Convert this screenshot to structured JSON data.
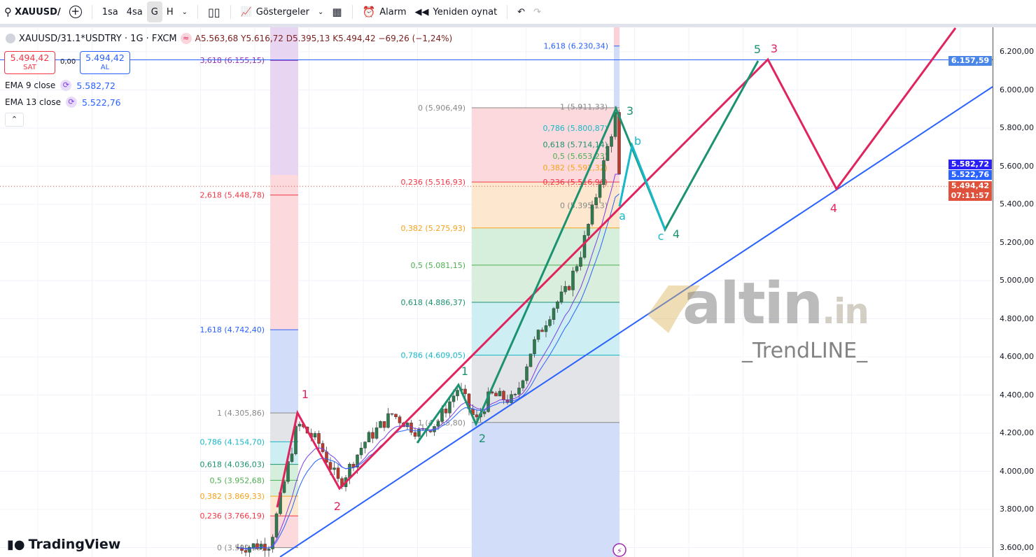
{
  "toolbar": {
    "symbol": "XAUUSD/",
    "intervals": [
      "1sa",
      "4sa",
      "G",
      "H"
    ],
    "active_interval": "G",
    "indicators": "Göstergeler",
    "alarm": "Alarm",
    "replay": "Yeniden oynat"
  },
  "legend": {
    "title": "XAUUSD/31.1*USDTRY · 1G · FXCM",
    "open": "A5.563,68",
    "high": "Y5.616,72",
    "low": "D5.395,13",
    "close": "K5.494,42",
    "change": "−69,26 (−1,24%)"
  },
  "trade": {
    "sell_price": "5.494,42",
    "sell_label": "SAT",
    "spread": "0,00",
    "buy_price": "5.494,42",
    "buy_label": "AL"
  },
  "emas": [
    {
      "label": "EMA 9 close",
      "value": "5.582,72"
    },
    {
      "label": "EMA 13 close",
      "value": "5.522,76"
    }
  ],
  "price_axis": {
    "ticks": [
      "6.200,00",
      "6.000,00",
      "5.800,00",
      "5.600,00",
      "5.400,00",
      "5.200,00",
      "5.000,00",
      "4.800,00",
      "4.600,00",
      "4.400,00",
      "4.200,00",
      "4.000,00",
      "3.800,00",
      "3.600,00"
    ],
    "badges": [
      {
        "text": "6.157,59",
        "color": "#4a86e8"
      },
      {
        "text": "5.582,72",
        "color": "#2a1ff5"
      },
      {
        "text": "5.522,76",
        "color": "#2962ff"
      },
      {
        "text": "5.494,42",
        "color": "#e0513c"
      },
      {
        "text": "07:11:57",
        "color": "#e0513c"
      }
    ]
  },
  "fib_large": [
    "0 (5.906,49)",
    "0,236 (5.516,93)",
    "0,382 (5.275,93)",
    "0,5 (5.081,15)",
    "0,618 (4.886,37)",
    "0,786 (4.609,05)",
    "1 (4.255,80)"
  ],
  "fib_small": [
    "1 (5.911,33)",
    "0,786 (5.800,87)",
    "0,618 (5.714,14)",
    "0,5 (5.653,23)",
    "0,382 (5.592,32)",
    "0,236 (5.516,96)",
    "0 (5.395,13)",
    "1,618 (6.230,34)"
  ],
  "fib_left": [
    "1 (4.305,86)",
    "0,786 (4.154,70)",
    "0,618 (4.036,03)",
    "0,5 (3.952,68)",
    "0,382 (3.869,33)",
    "0,236 (3.766,19)",
    "0 (3.599,49)",
    "1,618 (4.742,40)",
    "2,618 (5.448,78)",
    "3,618 (6.155,15)"
  ],
  "waves": {
    "pink": [
      "1",
      "2",
      "3",
      "4"
    ],
    "green": [
      "1",
      "2",
      "3",
      "4",
      "5"
    ],
    "cyan": [
      "a",
      "b",
      "c"
    ]
  },
  "colors": {
    "pink": "#e0245e",
    "green": "#1b9270",
    "cyan": "#17b8c8",
    "blue": "#2962ff",
    "up": "#2e7d4f",
    "down": "#c0392b"
  },
  "watermark": {
    "brand": "altin",
    "tld": ".in",
    "tagline": "_TrendLINE_"
  },
  "logo": "TradingView"
}
